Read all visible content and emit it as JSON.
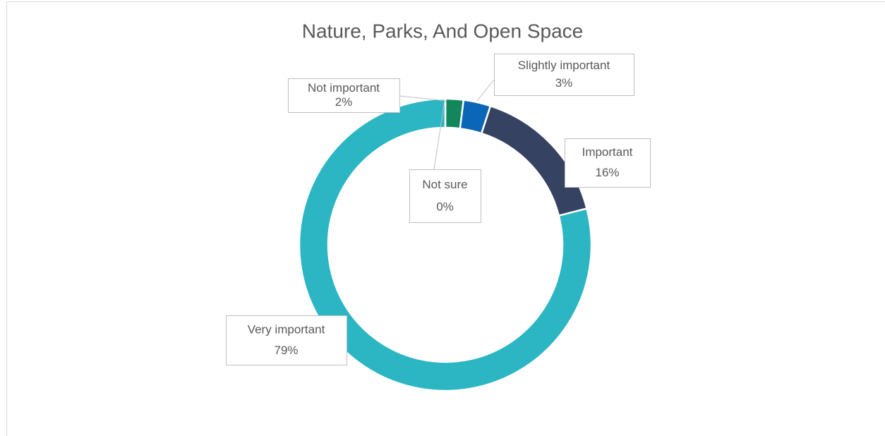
{
  "chart_data": {
    "type": "donut",
    "title": "Nature, Parks, And Open Space",
    "categories": [
      "Not sure",
      "Not important",
      "Slightly important",
      "Important",
      "Very important"
    ],
    "values": [
      0,
      2,
      3,
      16,
      79
    ],
    "value_labels": [
      "0%",
      "2%",
      "3%",
      "16%",
      "79%"
    ],
    "colors": [
      "#7f7f7f",
      "#13875c",
      "#0b66b8",
      "#364262",
      "#2cb6c3"
    ]
  }
}
